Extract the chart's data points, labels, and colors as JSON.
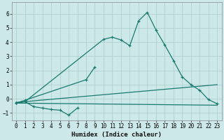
{
  "xlabel": "Humidex (Indice chaleur)",
  "bg_color": "#cce8e8",
  "line_color": "#1a7a6e",
  "grid_color": "#aacccc",
  "xlim": [
    -0.5,
    23.5
  ],
  "ylim": [
    -1.5,
    6.8
  ],
  "yticks": [
    -1,
    0,
    1,
    2,
    3,
    4,
    5,
    6
  ],
  "xticks": [
    0,
    1,
    2,
    3,
    4,
    5,
    6,
    7,
    8,
    9,
    10,
    11,
    12,
    13,
    14,
    15,
    16,
    17,
    18,
    19,
    20,
    21,
    22,
    23
  ],
  "line1_x": [
    0,
    1,
    10,
    11,
    12,
    13,
    14,
    15,
    16,
    17,
    18,
    19,
    20,
    21,
    22,
    23
  ],
  "line1_y": [
    -0.3,
    -0.2,
    4.2,
    4.35,
    4.15,
    3.75,
    5.5,
    6.1,
    4.85,
    3.8,
    2.7,
    1.55,
    1.0,
    0.6,
    -0.05,
    -0.35
  ],
  "line2_x": [
    0,
    1,
    2,
    3,
    4,
    5,
    6,
    7
  ],
  "line2_y": [
    -0.3,
    -0.2,
    -0.55,
    -0.65,
    -0.75,
    -0.8,
    -1.15,
    -0.65
  ],
  "line3_x": [
    0,
    1,
    8,
    9
  ],
  "line3_y": [
    -0.3,
    -0.1,
    1.35,
    2.25
  ],
  "line4_x": [
    0,
    23
  ],
  "line4_y": [
    -0.25,
    1.0
  ],
  "line5_x": [
    0,
    23
  ],
  "line5_y": [
    -0.3,
    -0.45
  ]
}
